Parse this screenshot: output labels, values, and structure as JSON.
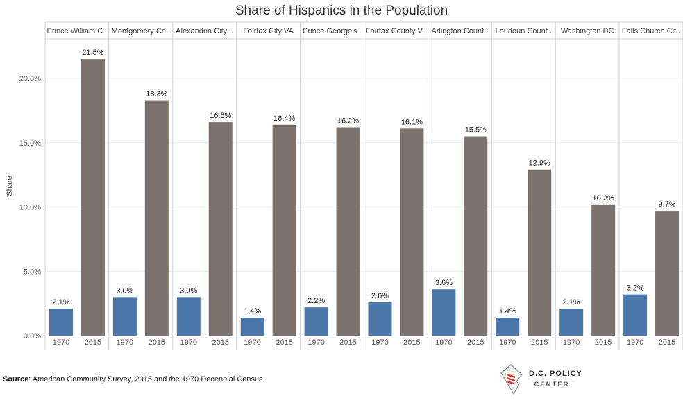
{
  "chart_data": {
    "type": "bar",
    "title": "Share of Hispanics in the Population",
    "ylabel": "Share",
    "ylim": [
      0,
      24
    ],
    "yticks": [
      "0.0%",
      "5.0%",
      "10.0%",
      "15.0%",
      "20.0%"
    ],
    "ytick_values": [
      0,
      5,
      10,
      15,
      20
    ],
    "years": [
      "1970",
      "2015"
    ],
    "colors": {
      "1970": "#4a77a8",
      "2015": "#7b716d"
    },
    "grid": true,
    "panels": [
      {
        "name": "Prince William C..",
        "values": [
          2.1,
          21.5
        ],
        "labels": [
          "2.1%",
          "21.5%"
        ]
      },
      {
        "name": "Montgomery Co..",
        "values": [
          3.0,
          18.3
        ],
        "labels": [
          "3.0%",
          "18.3%"
        ]
      },
      {
        "name": "Alexandria City ..",
        "values": [
          3.0,
          16.6
        ],
        "labels": [
          "3.0%",
          "16.6%"
        ]
      },
      {
        "name": "Fairfax City VA",
        "values": [
          1.4,
          16.4
        ],
        "labels": [
          "1.4%",
          "16.4%"
        ]
      },
      {
        "name": "Prince George's..",
        "values": [
          2.2,
          16.2
        ],
        "labels": [
          "2.2%",
          "16.2%"
        ]
      },
      {
        "name": "Fairfax County V..",
        "values": [
          2.6,
          16.1
        ],
        "labels": [
          "2.6%",
          "16.1%"
        ]
      },
      {
        "name": "Arlington Count..",
        "values": [
          3.6,
          15.5
        ],
        "labels": [
          "3.6%",
          "15.5%"
        ]
      },
      {
        "name": "Loudoun Count..",
        "values": [
          1.4,
          12.9
        ],
        "labels": [
          "1.4%",
          "12.9%"
        ]
      },
      {
        "name": "Washington DC",
        "values": [
          2.1,
          10.2
        ],
        "labels": [
          "2.1%",
          "10.2%"
        ]
      },
      {
        "name": "Falls Church Cit..",
        "values": [
          3.2,
          9.7
        ],
        "labels": [
          "3.2%",
          "9.7%"
        ]
      }
    ]
  },
  "footer": {
    "source_label": "Source",
    "source_text": ": American Community Survey, 2015 and the 1970 Decennial Census",
    "logo_line1": "D.C. POLICY",
    "logo_line2": "CENTER"
  }
}
